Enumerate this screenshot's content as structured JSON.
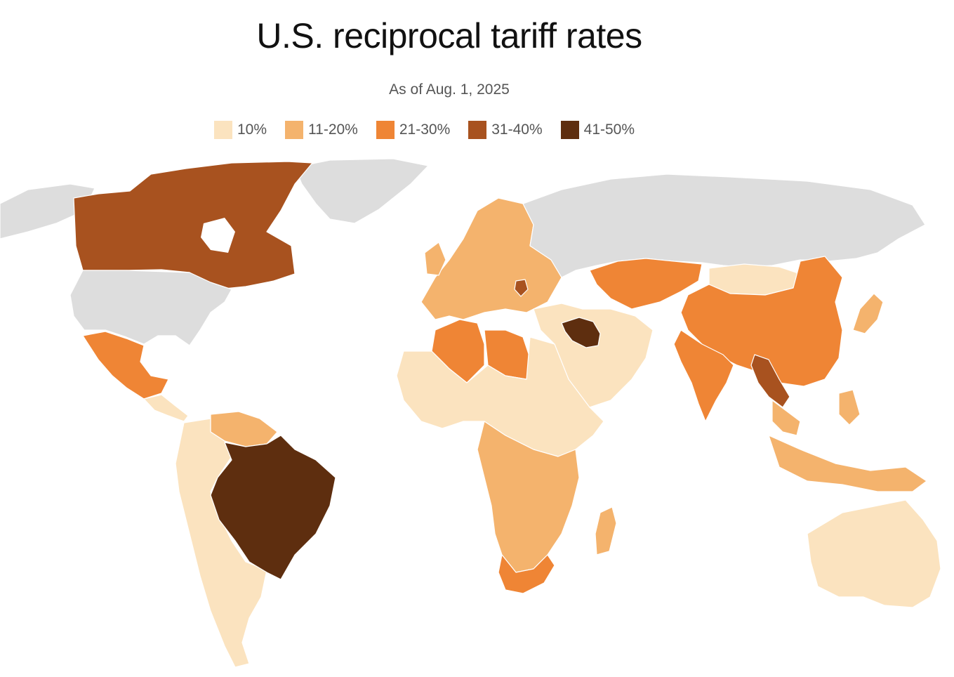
{
  "header": {
    "title": "U.S. reciprocal tariff rates",
    "subtitle": "As of Aug. 1, 2025"
  },
  "legend": [
    {
      "label": "10%",
      "color": "#fbe3bf"
    },
    {
      "label": "11-20%",
      "color": "#f4b36d"
    },
    {
      "label": "21-30%",
      "color": "#ef8535"
    },
    {
      "label": "31-40%",
      "color": "#a8521f"
    },
    {
      "label": "41-50%",
      "color": "#5e2e0f"
    }
  ],
  "colors": {
    "no_data": "#dddddd",
    "background": "#ffffff"
  },
  "regions": [
    {
      "name": "Canada",
      "tier": 4
    },
    {
      "name": "United States",
      "tier": 0
    },
    {
      "name": "Mexico",
      "tier": 3
    },
    {
      "name": "Brazil",
      "tier": 5
    },
    {
      "name": "South America (other)",
      "tier": 1
    },
    {
      "name": "Northern South America",
      "tier": 2
    },
    {
      "name": "Europe",
      "tier": 2
    },
    {
      "name": "Serbia",
      "tier": 4
    },
    {
      "name": "Russia",
      "tier": 0
    },
    {
      "name": "Greenland",
      "tier": 0
    },
    {
      "name": "Algeria",
      "tier": 3
    },
    {
      "name": "Libya",
      "tier": 3
    },
    {
      "name": "North Africa (other)",
      "tier": 1
    },
    {
      "name": "Southern Africa",
      "tier": 2
    },
    {
      "name": "South Africa",
      "tier": 3
    },
    {
      "name": "Madagascar",
      "tier": 2
    },
    {
      "name": "Middle East",
      "tier": 1
    },
    {
      "name": "Syria and Iraq",
      "tier": 5
    },
    {
      "name": "Kazakhstan",
      "tier": 3
    },
    {
      "name": "China",
      "tier": 3
    },
    {
      "name": "Mongolia",
      "tier": 1
    },
    {
      "name": "India",
      "tier": 3
    },
    {
      "name": "Myanmar and Laos",
      "tier": 4
    },
    {
      "name": "Southeast Asia",
      "tier": 2
    },
    {
      "name": "Japan",
      "tier": 2
    },
    {
      "name": "Indonesia",
      "tier": 2
    },
    {
      "name": "Australia",
      "tier": 1
    }
  ]
}
